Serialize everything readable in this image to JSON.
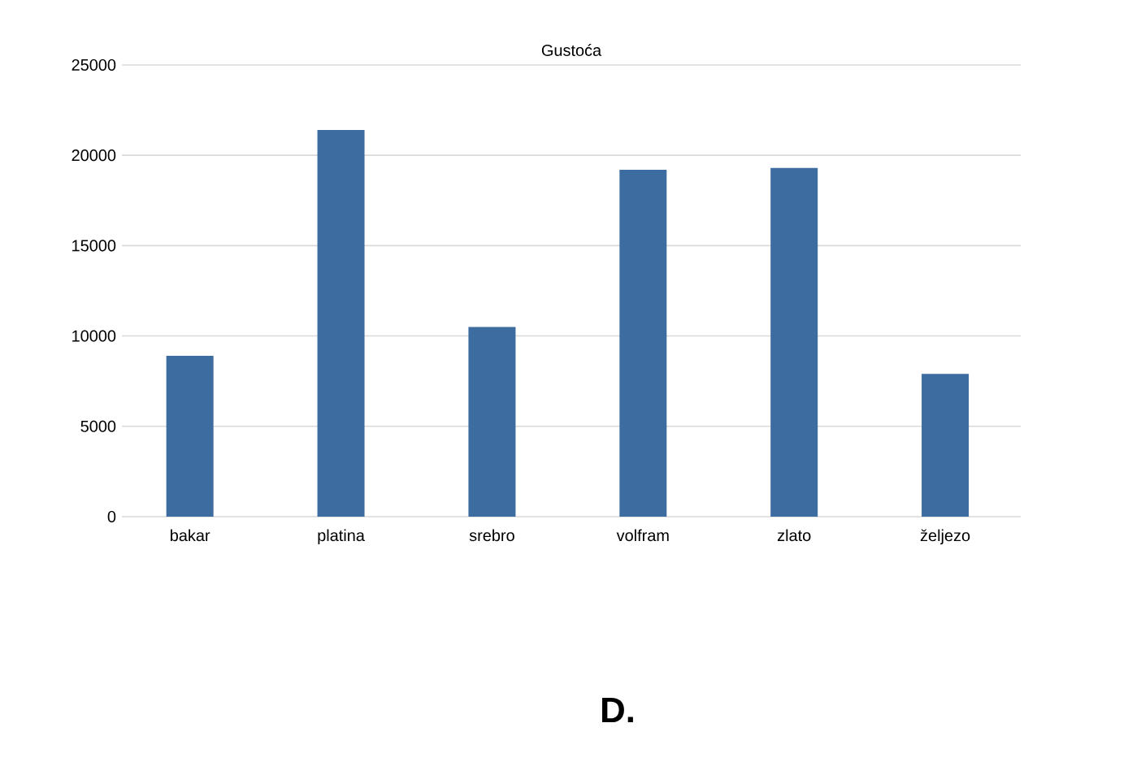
{
  "chart_data": {
    "type": "bar",
    "title": "Gustoća",
    "categories": [
      "bakar",
      "platina",
      "srebro",
      "volfram",
      "zlato",
      "željezo"
    ],
    "values": [
      8900,
      21400,
      10500,
      19200,
      19300,
      7900
    ],
    "color": "#3c6ca0",
    "ylim": [
      0,
      25000
    ],
    "yticks": [
      0,
      5000,
      10000,
      15000,
      20000,
      25000
    ],
    "grid": "y",
    "annotations": [
      "D."
    ]
  }
}
